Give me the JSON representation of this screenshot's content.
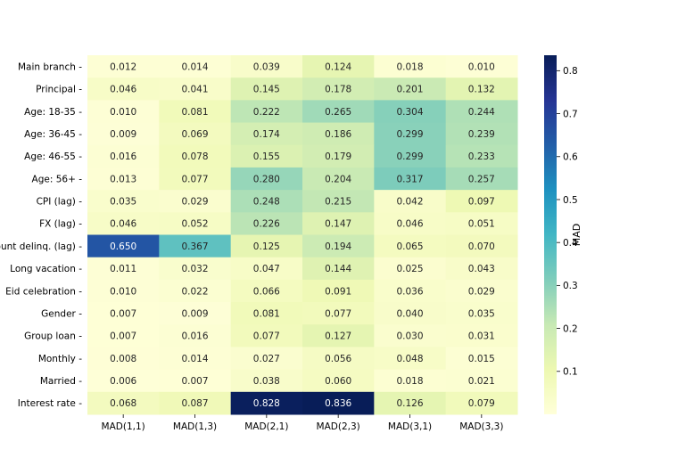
{
  "chart_data": {
    "type": "heatmap",
    "rows": [
      "Main branch",
      "Principal",
      "Age: 18-35",
      "Age: 36-45",
      "Age: 46-55",
      "Age: 56+",
      "CPI (lag)",
      "FX (lag)",
      "Count delinq. (lag)",
      "Long vacation",
      "Eid celebration",
      "Gender",
      "Group loan",
      "Monthly",
      "Married",
      "Interest rate"
    ],
    "columns": [
      "MAD(1,1)",
      "MAD(1,3)",
      "MAD(2,1)",
      "MAD(2,3)",
      "MAD(3,1)",
      "MAD(3,3)"
    ],
    "values": [
      [
        0.012,
        0.014,
        0.039,
        0.124,
        0.018,
        0.01
      ],
      [
        0.046,
        0.041,
        0.145,
        0.178,
        0.201,
        0.132
      ],
      [
        0.01,
        0.081,
        0.222,
        0.265,
        0.304,
        0.244
      ],
      [
        0.009,
        0.069,
        0.174,
        0.186,
        0.299,
        0.239
      ],
      [
        0.016,
        0.078,
        0.155,
        0.179,
        0.299,
        0.233
      ],
      [
        0.013,
        0.077,
        0.28,
        0.204,
        0.317,
        0.257
      ],
      [
        0.035,
        0.029,
        0.248,
        0.215,
        0.042,
        0.097
      ],
      [
        0.046,
        0.052,
        0.226,
        0.147,
        0.046,
        0.051
      ],
      [
        0.65,
        0.367,
        0.125,
        0.194,
        0.065,
        0.07
      ],
      [
        0.011,
        0.032,
        0.047,
        0.144,
        0.025,
        0.043
      ],
      [
        0.01,
        0.022,
        0.066,
        0.091,
        0.036,
        0.029
      ],
      [
        0.007,
        0.009,
        0.081,
        0.077,
        0.04,
        0.035
      ],
      [
        0.007,
        0.016,
        0.077,
        0.127,
        0.03,
        0.031
      ],
      [
        0.008,
        0.014,
        0.027,
        0.056,
        0.048,
        0.015
      ],
      [
        0.006,
        0.007,
        0.038,
        0.06,
        0.018,
        0.021
      ],
      [
        0.068,
        0.087,
        0.828,
        0.836,
        0.126,
        0.079
      ]
    ],
    "value_labels": [
      [
        "0.012",
        "0.014",
        "0.039",
        "0.124",
        "0.018",
        "0.010"
      ],
      [
        "0.046",
        "0.041",
        "0.145",
        "0.178",
        "0.201",
        "0.132"
      ],
      [
        "0.010",
        "0.081",
        "0.222",
        "0.265",
        "0.304",
        "0.244"
      ],
      [
        "0.009",
        "0.069",
        "0.174",
        "0.186",
        "0.299",
        "0.239"
      ],
      [
        "0.016",
        "0.078",
        "0.155",
        "0.179",
        "0.299",
        "0.233"
      ],
      [
        "0.013",
        "0.077",
        "0.280",
        "0.204",
        "0.317",
        "0.257"
      ],
      [
        "0.035",
        "0.029",
        "0.248",
        "0.215",
        "0.042",
        "0.097"
      ],
      [
        "0.046",
        "0.052",
        "0.226",
        "0.147",
        "0.046",
        "0.051"
      ],
      [
        "0.650",
        "0.367",
        "0.125",
        "0.194",
        "0.065",
        "0.070"
      ],
      [
        "0.011",
        "0.032",
        "0.047",
        "0.144",
        "0.025",
        "0.043"
      ],
      [
        "0.010",
        "0.022",
        "0.066",
        "0.091",
        "0.036",
        "0.029"
      ],
      [
        "0.007",
        "0.009",
        "0.081",
        "0.077",
        "0.040",
        "0.035"
      ],
      [
        "0.007",
        "0.016",
        "0.077",
        "0.127",
        "0.030",
        "0.031"
      ],
      [
        "0.008",
        "0.014",
        "0.027",
        "0.056",
        "0.048",
        "0.015"
      ],
      [
        "0.006",
        "0.007",
        "0.038",
        "0.060",
        "0.018",
        "0.021"
      ],
      [
        "0.068",
        "0.087",
        "0.828",
        "0.836",
        "0.126",
        "0.079"
      ]
    ],
    "colorbar": {
      "label": "MAD",
      "colormap": "YlGnBu",
      "min": 0.0,
      "max": 0.836,
      "ticks": [
        0.1,
        0.2,
        0.3,
        0.4,
        0.5,
        0.6,
        0.7,
        0.8
      ],
      "tick_labels": [
        "0.1",
        "0.2",
        "0.3",
        "0.4",
        "0.5",
        "0.6",
        "0.7",
        "0.8"
      ]
    },
    "grid": false
  }
}
